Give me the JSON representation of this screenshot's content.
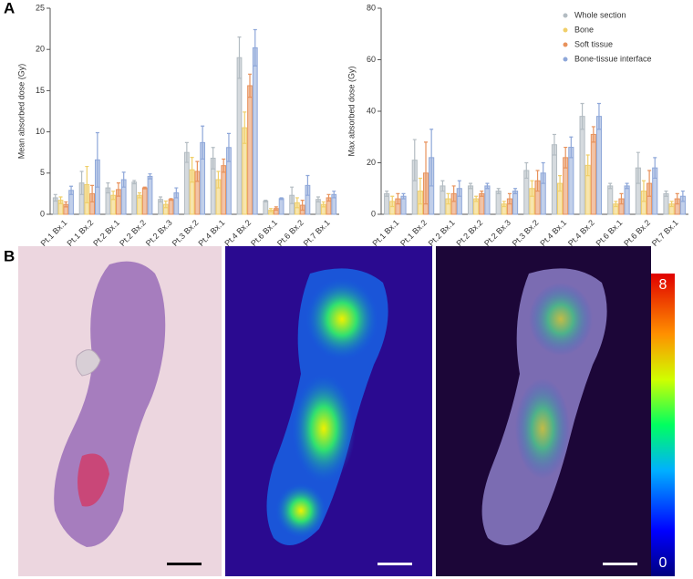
{
  "panels": [
    "A",
    "B"
  ],
  "colorbar_ticks": [
    8,
    0
  ],
  "chart_data": [
    {
      "type": "bar",
      "y_label": "Mean absorbed dose (Gy)",
      "categories": [
        "Pt.1 Bx.1",
        "Pt.1 Bx.2",
        "Pt.2 Bx.1",
        "Pt.2 Bx.2",
        "Pt.2 Bx.3",
        "Pt.3 Bx.2",
        "Pt.4 Bx.1",
        "Pt.4 Bx.2",
        "Pt.6 Bx.1",
        "Pt.6 Bx.2",
        "Pt.7 Bx.1"
      ],
      "ylim": [
        0,
        25
      ],
      "yticks": [
        0,
        5,
        10,
        15,
        20,
        25
      ],
      "legend": false,
      "series": [
        {
          "color": "#b3bcc2",
          "values": [
            2.0,
            3.8,
            3.2,
            3.9,
            1.8,
            7.5,
            6.8,
            19.0,
            1.6,
            2.3,
            1.8
          ],
          "errors": [
            0.4,
            1.4,
            0.6,
            0.2,
            0.3,
            1.2,
            1.3,
            2.5,
            0.1,
            1.0,
            0.3
          ]
        },
        {
          "color": "#f0cf6a",
          "values": [
            1.7,
            3.6,
            2.3,
            2.3,
            1.2,
            5.4,
            4.2,
            10.5,
            0.5,
            1.4,
            1.2
          ],
          "errors": [
            0.4,
            2.2,
            0.5,
            0.3,
            0.4,
            1.5,
            1.0,
            1.9,
            0.2,
            0.6,
            0.3
          ]
        },
        {
          "color": "#e8925c",
          "values": [
            1.2,
            2.5,
            3.0,
            3.2,
            1.8,
            5.2,
            5.9,
            15.6,
            0.7,
            1.1,
            2.0
          ],
          "errors": [
            0.3,
            1.0,
            0.8,
            0.1,
            0.1,
            1.2,
            0.8,
            1.4,
            0.2,
            0.6,
            0.4
          ]
        },
        {
          "color": "#8ea7d9",
          "values": [
            2.9,
            6.6,
            4.2,
            4.6,
            2.6,
            8.7,
            8.1,
            20.2,
            1.9,
            3.5,
            2.4
          ],
          "errors": [
            0.5,
            3.3,
            0.9,
            0.3,
            0.6,
            2.0,
            1.7,
            2.2,
            0.1,
            1.2,
            0.4
          ]
        }
      ]
    },
    {
      "type": "bar",
      "y_label": "Max absorbed dose (Gy)",
      "categories": [
        "Pt.1 Bx.1",
        "Pt.1 Bx.2",
        "Pt.2 Bx.1",
        "Pt.2 Bx.2",
        "Pt.2 Bx.3",
        "Pt.3 Bx.2",
        "Pt.4 Bx.1",
        "Pt.4 Bx.2",
        "Pt.6 Bx.1",
        "Pt.6 Bx.2",
        "Pt.7 Bx.1"
      ],
      "ylim": [
        0,
        80
      ],
      "yticks": [
        0,
        20,
        40,
        60,
        80
      ],
      "legend": "top-right",
      "series": [
        {
          "name": "Whole section",
          "color": "#b3bcc2",
          "values": [
            8,
            21,
            11,
            11,
            9,
            17,
            27,
            38,
            11,
            18,
            8
          ],
          "errors": [
            1,
            8,
            2,
            1,
            1,
            3,
            4,
            5,
            1,
            6,
            1
          ]
        },
        {
          "name": "Bone",
          "color": "#f0cf6a",
          "values": [
            5,
            9,
            6,
            6,
            4,
            10,
            12,
            19,
            4,
            9,
            4
          ],
          "errors": [
            2,
            5,
            2,
            1,
            1,
            3,
            3,
            4,
            1,
            4,
            1
          ]
        },
        {
          "name": "Soft tissue",
          "color": "#e8925c",
          "values": [
            6,
            16,
            8,
            8,
            6,
            13,
            22,
            31,
            6,
            12,
            6
          ],
          "errors": [
            2,
            12,
            3,
            1,
            2,
            4,
            4,
            3,
            2,
            5,
            2
          ]
        },
        {
          "name": "Bone-tissue interface",
          "color": "#8ea7d9",
          "values": [
            7,
            22,
            10,
            11,
            9,
            16,
            26,
            38,
            11,
            18,
            7
          ],
          "errors": [
            1,
            11,
            3,
            1,
            1,
            4,
            4,
            5,
            1,
            4,
            2
          ]
        }
      ]
    }
  ]
}
